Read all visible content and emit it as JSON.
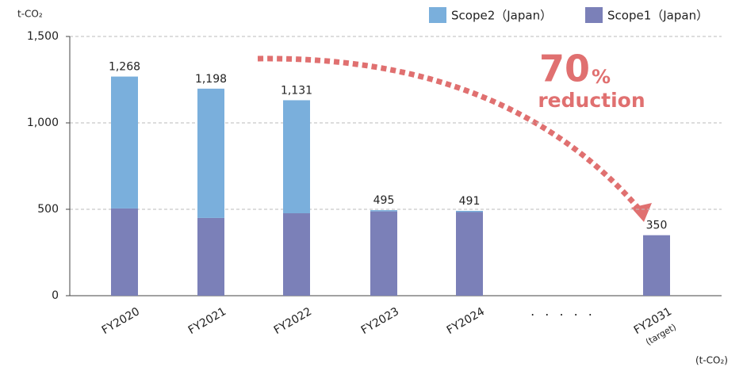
{
  "chart_data": {
    "type": "stacked_bar",
    "y_unit": "t-CO₂",
    "footnote": "(t-CO₂)",
    "categories": [
      "FY2020",
      "FY2021",
      "FY2022",
      "FY2023",
      "FY2024",
      "· · · · ·",
      "FY2031"
    ],
    "category_note": "(target)",
    "series": [
      {
        "name": "Scope1（Japan）",
        "color": "#7b80b8",
        "values": [
          505,
          450,
          477,
          488,
          484,
          null,
          350
        ]
      },
      {
        "name": "Scope2（Japan）",
        "color": "#7aafdc",
        "values": [
          763,
          748,
          654,
          7,
          7,
          null,
          null
        ]
      }
    ],
    "totals": [
      1268,
      1198,
      1131,
      495,
      491,
      null,
      350
    ],
    "total_labels": [
      "1,268",
      "1,198",
      "1,131",
      "495",
      "491",
      null,
      "350"
    ],
    "ylim": [
      0,
      1500
    ],
    "yticks": [
      0,
      500,
      {
        "value": 1000,
        "label": "1,000"
      },
      {
        "value": 1500,
        "label": "1,500"
      }
    ],
    "grid": true,
    "annotation": {
      "number": "70",
      "unit": "%",
      "text": "reduction"
    }
  }
}
